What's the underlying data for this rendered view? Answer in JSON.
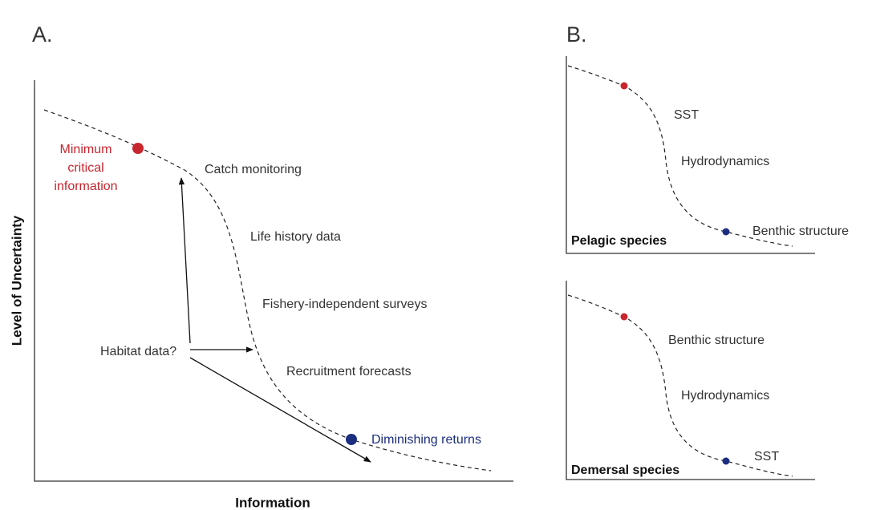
{
  "panel_a": {
    "label": "A.",
    "y_axis_label": "Level of Uncertainty",
    "x_axis_label": "Information",
    "minimum_label": [
      "Minimum",
      "critical",
      "information"
    ],
    "stages": [
      "Catch monitoring",
      "Life history data",
      "Fishery-independent surveys",
      "Recruitment forecasts"
    ],
    "habitat_label": "Habitat data?",
    "diminishing_label": "Diminishing returns"
  },
  "panel_b": {
    "label": "B.",
    "charts": [
      {
        "title": "Pelagic species",
        "stages": [
          "SST",
          "Hydrodynamics",
          "Benthic structure"
        ]
      },
      {
        "title": "Demersal species",
        "stages": [
          "Benthic structure",
          "Hydrodynamics",
          "SST"
        ]
      }
    ]
  }
}
